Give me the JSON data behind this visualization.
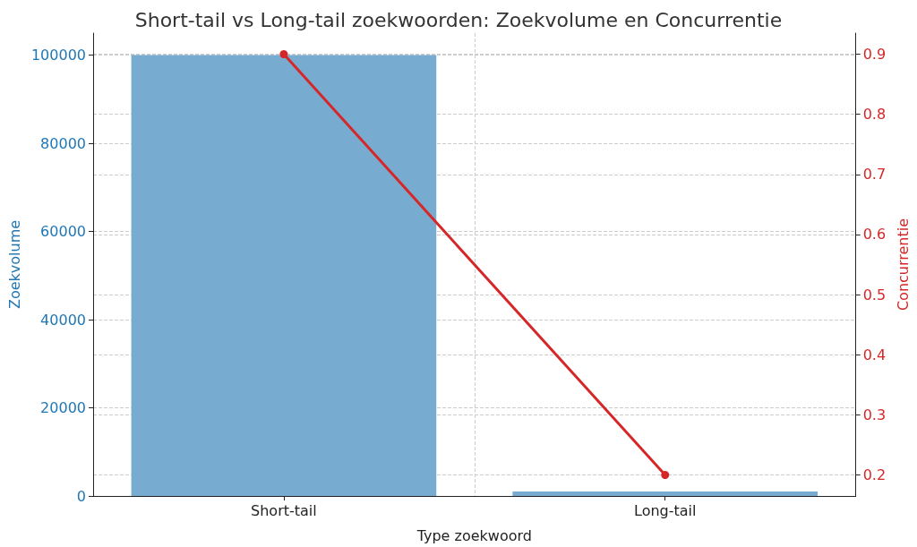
{
  "chart_data": {
    "type": "bar",
    "title": "Short-tail vs Long-tail zoekwoorden: Zoekvolume en Concurrentie",
    "xlabel": "Type zoekwoord",
    "ylabel": "Zoekvolume",
    "y2label": "Concurrentie",
    "categories": [
      "Short-tail",
      "Long-tail"
    ],
    "series": [
      {
        "color": "#77acd0",
        "values": [
          100000,
          1000
        ]
      },
      {
        "type": "line",
        "axis": "y2",
        "color": "#d62728",
        "marker": "circle",
        "values": [
          0.9,
          0.2
        ]
      }
    ],
    "ylim": [
      0,
      105000
    ],
    "yticks": [
      0,
      20000,
      40000,
      60000,
      80000,
      100000
    ],
    "y2lim": [
      0.165,
      0.935
    ],
    "y2ticks": [
      0.2,
      0.3,
      0.4,
      0.5,
      0.6,
      0.7,
      0.8,
      0.9
    ],
    "grid": true
  }
}
